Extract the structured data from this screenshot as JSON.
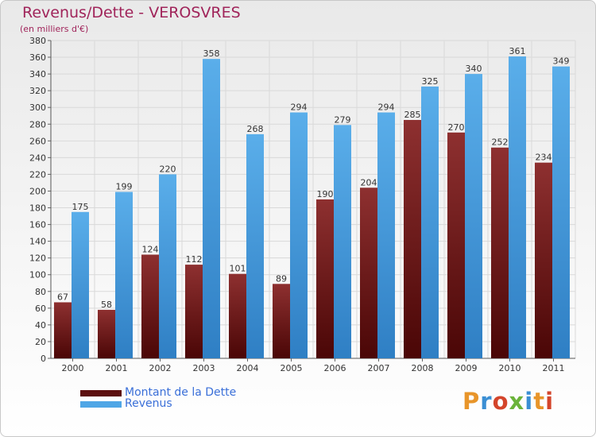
{
  "title": "Revenus/Dette - VEROSVRES",
  "subtitle": "(en milliers d'€)",
  "logo_text": "Proxiti",
  "colors": {
    "title": "#a0245a",
    "dette": "#7a1a1a",
    "revenus": "#4fa6e6",
    "legend_text": "#3a6fd8"
  },
  "legend": [
    {
      "label": "Montant de la Dette",
      "color": "#5c0f0f"
    },
    {
      "label": "Revenus",
      "color": "#4fa6e6"
    }
  ],
  "chart_data": {
    "type": "bar",
    "categories": [
      "2000",
      "2001",
      "2002",
      "2003",
      "2004",
      "2005",
      "2006",
      "2007",
      "2008",
      "2009",
      "2010",
      "2011"
    ],
    "series": [
      {
        "name": "Montant de la Dette",
        "values": [
          67,
          58,
          124,
          112,
          101,
          89,
          190,
          204,
          285,
          270,
          252,
          234
        ]
      },
      {
        "name": "Revenus",
        "values": [
          175,
          199,
          220,
          358,
          268,
          294,
          279,
          294,
          325,
          340,
          361,
          349
        ]
      }
    ],
    "ylim": [
      0,
      380
    ],
    "yticks": [
      0,
      20,
      40,
      60,
      80,
      100,
      120,
      140,
      160,
      180,
      200,
      220,
      240,
      260,
      280,
      300,
      320,
      340,
      360,
      380
    ],
    "grid": true,
    "legend_position": "bottom-left"
  }
}
